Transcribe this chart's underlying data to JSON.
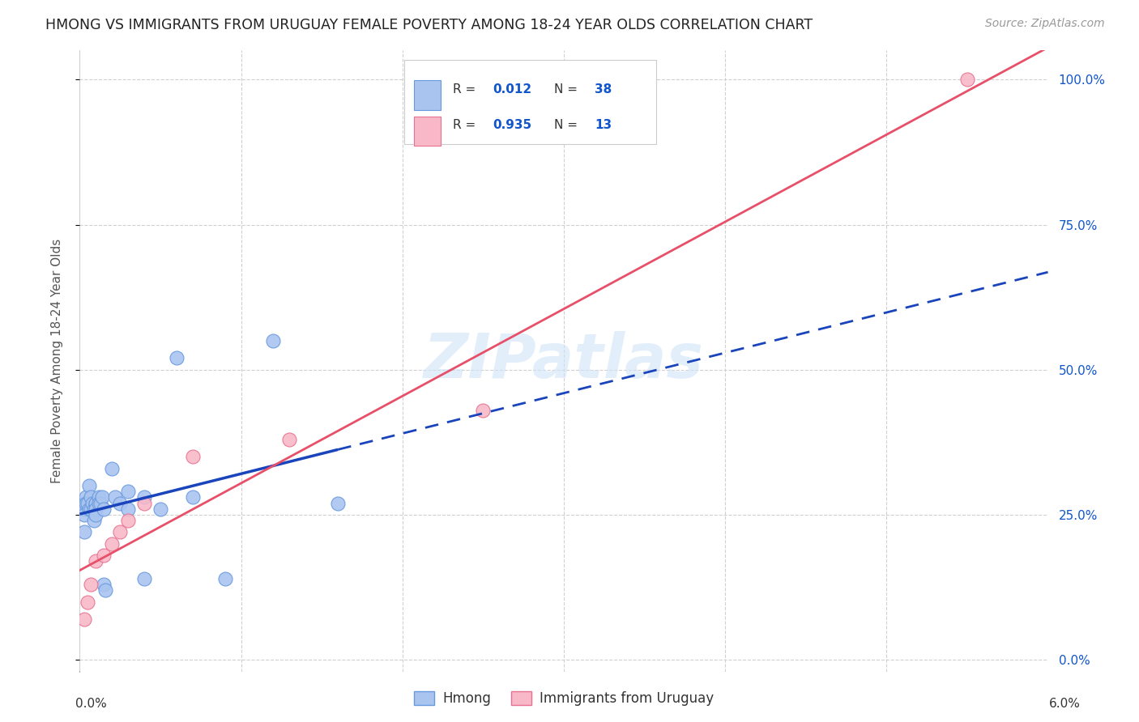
{
  "title": "HMONG VS IMMIGRANTS FROM URUGUAY FEMALE POVERTY AMONG 18-24 YEAR OLDS CORRELATION CHART",
  "source": "Source: ZipAtlas.com",
  "ylabel": "Female Poverty Among 18-24 Year Olds",
  "xlim": [
    0.0,
    0.06
  ],
  "ylim": [
    -0.02,
    1.05
  ],
  "yticks": [
    0.0,
    0.25,
    0.5,
    0.75,
    1.0
  ],
  "ytick_labels": [
    "0.0%",
    "25.0%",
    "50.0%",
    "75.0%",
    "100.0%"
  ],
  "background_color": "#ffffff",
  "grid_color": "#d0d0d0",
  "hmong_color": "#aac4f0",
  "hmong_edge_color": "#6699dd",
  "uruguay_color": "#f8b8c8",
  "uruguay_edge_color": "#e87090",
  "hmong_line_color": "#1a44bb",
  "uruguay_line_color": "#e8506a",
  "R_hmong": "0.012",
  "N_hmong": "38",
  "R_uruguay": "0.935",
  "N_uruguay": "13",
  "legend_text_color": "#333333",
  "legend_val_color": "#1155cc",
  "hmong_x": [
    0.0003,
    0.0003,
    0.0003,
    0.0003,
    0.0004,
    0.0004,
    0.0005,
    0.0006,
    0.0006,
    0.0007,
    0.0007,
    0.0008,
    0.0009,
    0.0009,
    0.001,
    0.001,
    0.001,
    0.001,
    0.0012,
    0.0012,
    0.0013,
    0.0014,
    0.0015,
    0.0015,
    0.0016,
    0.002,
    0.0022,
    0.0025,
    0.003,
    0.003,
    0.004,
    0.004,
    0.005,
    0.006,
    0.007,
    0.009,
    0.012,
    0.016
  ],
  "hmong_y": [
    0.27,
    0.26,
    0.25,
    0.22,
    0.28,
    0.27,
    0.27,
    0.3,
    0.26,
    0.28,
    0.26,
    0.27,
    0.26,
    0.24,
    0.27,
    0.27,
    0.26,
    0.25,
    0.28,
    0.27,
    0.27,
    0.28,
    0.26,
    0.13,
    0.12,
    0.33,
    0.28,
    0.27,
    0.29,
    0.26,
    0.28,
    0.14,
    0.26,
    0.52,
    0.28,
    0.14,
    0.55,
    0.27
  ],
  "uruguay_x": [
    0.0003,
    0.0005,
    0.0007,
    0.001,
    0.0015,
    0.002,
    0.0025,
    0.003,
    0.004,
    0.007,
    0.013,
    0.025,
    0.055
  ],
  "uruguay_y": [
    0.07,
    0.1,
    0.13,
    0.17,
    0.18,
    0.2,
    0.22,
    0.24,
    0.27,
    0.35,
    0.38,
    0.43,
    1.0
  ],
  "watermark": "ZIPatlas",
  "legend_labels": [
    "Hmong",
    "Immigrants from Uruguay"
  ]
}
